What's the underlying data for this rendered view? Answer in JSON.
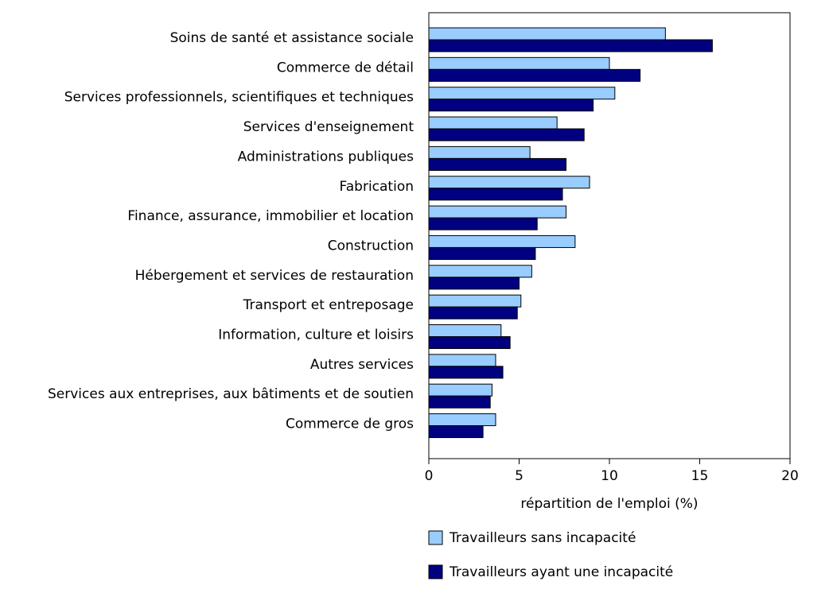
{
  "chart_data": {
    "type": "hbar-grouped",
    "xlabel": "répartition de l'emploi (%)",
    "categories": [
      "Soins de santé et assistance sociale",
      "Commerce de détail",
      "Services professionnels, scientifiques et techniques",
      "Services d'enseignement",
      "Administrations publiques",
      "Fabrication",
      "Finance, assurance, immobilier et location",
      "Construction",
      "Hébergement et services de restauration",
      "Transport et entreposage",
      "Information, culture et loisirs",
      "Autres services",
      "Services aux entreprises, aux bâtiments et de soutien",
      "Commerce de gros"
    ],
    "series": [
      {
        "name": "Travailleurs sans incapacité",
        "color": "#99ccff",
        "values": [
          13.1,
          10.0,
          10.3,
          7.1,
          5.6,
          8.9,
          7.6,
          8.1,
          5.7,
          5.1,
          4.0,
          3.7,
          3.5,
          3.7
        ]
      },
      {
        "name": "Travailleurs ayant une incapacité",
        "color": "#000080",
        "values": [
          15.7,
          11.7,
          9.1,
          8.6,
          7.6,
          7.4,
          6.0,
          5.9,
          5.0,
          4.9,
          4.5,
          4.1,
          3.4,
          3.0
        ]
      }
    ],
    "xlim": [
      0,
      20
    ],
    "xticks": [
      0,
      5,
      10,
      15,
      20
    ]
  }
}
